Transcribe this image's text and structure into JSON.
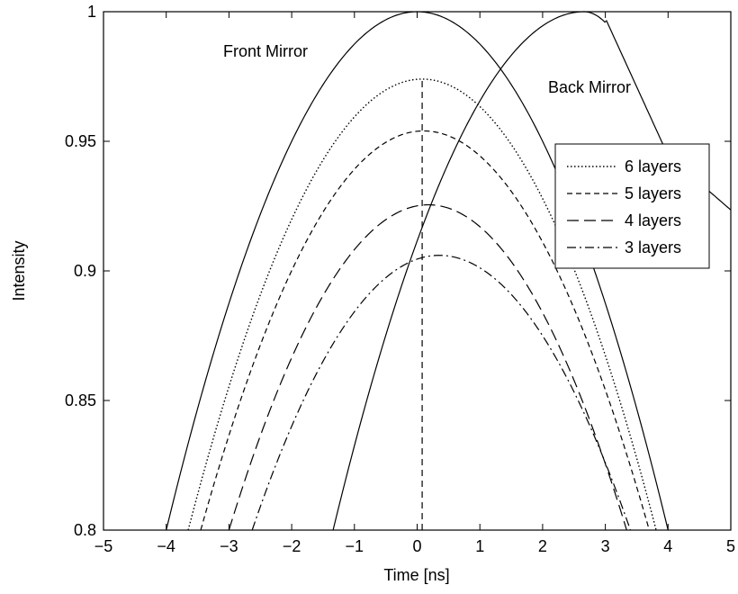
{
  "chart_data": {
    "type": "line",
    "xlabel": "Time [ns]",
    "ylabel": "Intensity",
    "xlim": [
      -5,
      5
    ],
    "ylim": [
      0.8,
      1.0
    ],
    "x_ticks": [
      -5,
      -4,
      -3,
      -2,
      -1,
      0,
      1,
      2,
      3,
      4,
      5
    ],
    "x_tick_labels": [
      "−5",
      "−4",
      "−3",
      "−2",
      "−1",
      "0",
      "1",
      "2",
      "3",
      "4",
      "5"
    ],
    "y_ticks": [
      0.8,
      0.85,
      0.9,
      0.95,
      1.0
    ],
    "y_tick_labels": [
      "0.8",
      "0.85",
      "0.9",
      "0.95",
      "1"
    ],
    "grid": false,
    "legend_position": "right",
    "series": [
      {
        "name": "Front Mirror",
        "label_on_chart": true,
        "dash": "solid",
        "peak_x": 0.0,
        "peak_y": 1.0,
        "x": [
          -4.0,
          -3,
          -2,
          -1,
          0,
          1,
          2,
          3,
          4.0
        ],
        "y": [
          0.8,
          0.8875,
          0.95,
          0.9875,
          1.0,
          0.9875,
          0.95,
          0.8875,
          0.8
        ]
      },
      {
        "name": "Back Mirror",
        "label_on_chart": true,
        "dash": "solid",
        "peak_x": 2.66,
        "peak_y": 1.0,
        "x": [
          -1.34,
          -1,
          0,
          1,
          2,
          2.66,
          3,
          4,
          5
        ],
        "y": [
          0.8,
          0.832,
          0.911,
          0.9655,
          0.9945,
          1.0,
          0.9975,
          0.9445,
          0.9235
        ]
      },
      {
        "name": "6 layers",
        "dash": "dotted",
        "peak_x": 0.08,
        "peak_y": 0.974,
        "x": [
          -3.65,
          -3,
          -2,
          -1,
          0,
          1,
          2,
          3,
          3.81
        ],
        "y": [
          0.8,
          0.8445,
          0.9055,
          0.9475,
          0.974,
          0.9645,
          0.9225,
          0.8575,
          0.8
        ]
      },
      {
        "name": "5 layers",
        "dash": "dashed",
        "peak_x": 0.1,
        "peak_y": 0.954,
        "x": [
          -3.45,
          -3,
          -2,
          -1,
          0,
          1,
          2,
          3,
          3.7
        ],
        "y": [
          0.8,
          0.8335,
          0.8915,
          0.9315,
          0.954,
          0.9425,
          0.9015,
          0.8395,
          0.8
        ]
      },
      {
        "name": "4 layers",
        "dash": "long-dash",
        "peak_x": 0.18,
        "peak_y": 0.9255,
        "x": [
          -3.0,
          -2,
          -1,
          0,
          1,
          2,
          3,
          3.34
        ],
        "y": [
          0.8,
          0.8655,
          0.9055,
          0.9245,
          0.918,
          0.8845,
          0.8215,
          0.8
        ]
      },
      {
        "name": "3 layers",
        "dash": "dash-dot",
        "peak_x": 0.35,
        "peak_y": 0.906,
        "x": [
          -2.63,
          -2,
          -1,
          0,
          1,
          2,
          3,
          3.4
        ],
        "y": [
          0.8,
          0.845,
          0.885,
          0.9035,
          0.9005,
          0.8685,
          0.8205,
          0.8
        ]
      },
      {
        "name": "",
        "dash": "dashed-vertical",
        "x": [
          0.08,
          0.08
        ],
        "y": [
          0.8,
          0.974
        ]
      }
    ],
    "legend_entries": [
      "6 layers",
      "5 layers",
      "4 layers",
      "3 layers"
    ]
  },
  "colors": {
    "line": "#000000",
    "background": "#ffffff"
  }
}
